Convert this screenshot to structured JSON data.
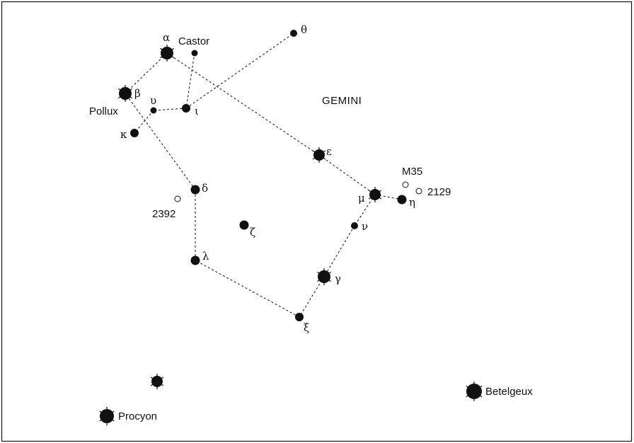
{
  "title": "GEMINI",
  "colors": {
    "ink": "#111111",
    "background": "#ffffff"
  },
  "stars": [
    {
      "id": "alpha",
      "label": "α",
      "name": "Castor"
    },
    {
      "id": "beta",
      "label": "β",
      "name": "Pollux"
    },
    {
      "id": "castor-b",
      "label": ""
    },
    {
      "id": "theta",
      "label": "θ"
    },
    {
      "id": "upsilon",
      "label": "υ"
    },
    {
      "id": "iota",
      "label": "ι"
    },
    {
      "id": "kappa",
      "label": "κ"
    },
    {
      "id": "epsilon",
      "label": "ε"
    },
    {
      "id": "delta",
      "label": "δ"
    },
    {
      "id": "zeta",
      "label": "ζ"
    },
    {
      "id": "mu",
      "label": "μ"
    },
    {
      "id": "eta",
      "label": "η"
    },
    {
      "id": "nu",
      "label": "ν"
    },
    {
      "id": "gamma",
      "label": "γ"
    },
    {
      "id": "lambda",
      "label": "λ"
    },
    {
      "id": "xi",
      "label": "ξ"
    },
    {
      "id": "procyon-b",
      "label": ""
    },
    {
      "id": "procyon",
      "label": "",
      "name": "Procyon"
    },
    {
      "id": "betelgeux",
      "label": "",
      "name": "Betelgeux"
    }
  ],
  "deep_sky": [
    {
      "id": "m35",
      "label": "M35"
    },
    {
      "id": "2129",
      "label": "2129"
    },
    {
      "id": "2392",
      "label": "2392"
    }
  ],
  "lines": [
    [
      "beta",
      "alpha"
    ],
    [
      "alpha",
      "epsilon"
    ],
    [
      "epsilon",
      "mu"
    ],
    [
      "mu",
      "eta"
    ],
    [
      "mu",
      "nu"
    ],
    [
      "nu",
      "gamma"
    ],
    [
      "gamma",
      "xi"
    ],
    [
      "xi",
      "lambda"
    ],
    [
      "lambda",
      "delta"
    ],
    [
      "delta",
      "beta"
    ],
    [
      "castor-b",
      "iota"
    ],
    [
      "iota",
      "theta"
    ],
    [
      "iota",
      "upsilon"
    ],
    [
      "upsilon",
      "kappa"
    ]
  ]
}
